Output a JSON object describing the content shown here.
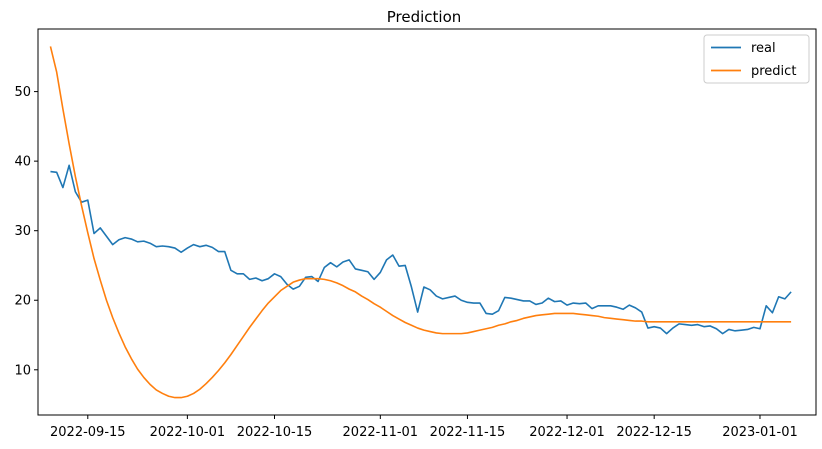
{
  "chart_data": {
    "type": "line",
    "title": "Prediction",
    "xlabel": "",
    "ylabel": "",
    "grid": false,
    "legend_position": "top-right",
    "x_ticks": [
      "2022-09-15",
      "2022-10-01",
      "2022-10-15",
      "2022-11-01",
      "2022-11-15",
      "2022-12-01",
      "2022-12-15",
      "2023-01-01"
    ],
    "y_ticks": [
      10,
      20,
      30,
      40,
      50
    ],
    "xlim": [
      "2022-09-07",
      "2023-01-10"
    ],
    "ylim": [
      3.5,
      59
    ],
    "series": [
      {
        "name": "real",
        "color": "#1f77b4",
        "points": [
          [
            "2022-09-09",
            38.5
          ],
          [
            "2022-09-10",
            38.4
          ],
          [
            "2022-09-11",
            36.2
          ],
          [
            "2022-09-12",
            39.4
          ],
          [
            "2022-09-13",
            35.6
          ],
          [
            "2022-09-14",
            34.1
          ],
          [
            "2022-09-15",
            34.4
          ],
          [
            "2022-09-16",
            29.6
          ],
          [
            "2022-09-17",
            30.4
          ],
          [
            "2022-09-18",
            29.2
          ],
          [
            "2022-09-19",
            28.0
          ],
          [
            "2022-09-20",
            28.7
          ],
          [
            "2022-09-21",
            29.0
          ],
          [
            "2022-09-22",
            28.8
          ],
          [
            "2022-09-23",
            28.4
          ],
          [
            "2022-09-24",
            28.5
          ],
          [
            "2022-09-25",
            28.2
          ],
          [
            "2022-09-26",
            27.7
          ],
          [
            "2022-09-27",
            27.8
          ],
          [
            "2022-09-28",
            27.7
          ],
          [
            "2022-09-29",
            27.5
          ],
          [
            "2022-09-30",
            26.9
          ],
          [
            "2022-10-01",
            27.5
          ],
          [
            "2022-10-02",
            28.0
          ],
          [
            "2022-10-03",
            27.7
          ],
          [
            "2022-10-04",
            27.9
          ],
          [
            "2022-10-05",
            27.6
          ],
          [
            "2022-10-06",
            27.0
          ],
          [
            "2022-10-07",
            27.0
          ],
          [
            "2022-10-08",
            24.3
          ],
          [
            "2022-10-09",
            23.8
          ],
          [
            "2022-10-10",
            23.8
          ],
          [
            "2022-10-11",
            23.0
          ],
          [
            "2022-10-12",
            23.2
          ],
          [
            "2022-10-13",
            22.8
          ],
          [
            "2022-10-14",
            23.1
          ],
          [
            "2022-10-15",
            23.8
          ],
          [
            "2022-10-16",
            23.4
          ],
          [
            "2022-10-17",
            22.3
          ],
          [
            "2022-10-18",
            21.6
          ],
          [
            "2022-10-19",
            22.0
          ],
          [
            "2022-10-20",
            23.3
          ],
          [
            "2022-10-21",
            23.4
          ],
          [
            "2022-10-22",
            22.7
          ],
          [
            "2022-10-23",
            24.7
          ],
          [
            "2022-10-24",
            25.4
          ],
          [
            "2022-10-25",
            24.8
          ],
          [
            "2022-10-26",
            25.5
          ],
          [
            "2022-10-27",
            25.8
          ],
          [
            "2022-10-28",
            24.5
          ],
          [
            "2022-10-29",
            24.3
          ],
          [
            "2022-10-30",
            24.1
          ],
          [
            "2022-10-31",
            23.0
          ],
          [
            "2022-11-01",
            24.0
          ],
          [
            "2022-11-02",
            25.8
          ],
          [
            "2022-11-03",
            26.5
          ],
          [
            "2022-11-04",
            24.9
          ],
          [
            "2022-11-05",
            25.0
          ],
          [
            "2022-11-06",
            21.9
          ],
          [
            "2022-11-07",
            18.3
          ],
          [
            "2022-11-08",
            21.9
          ],
          [
            "2022-11-09",
            21.5
          ],
          [
            "2022-11-10",
            20.6
          ],
          [
            "2022-11-11",
            20.2
          ],
          [
            "2022-11-12",
            20.4
          ],
          [
            "2022-11-13",
            20.6
          ],
          [
            "2022-11-14",
            20.0
          ],
          [
            "2022-11-15",
            19.7
          ],
          [
            "2022-11-16",
            19.6
          ],
          [
            "2022-11-17",
            19.6
          ],
          [
            "2022-11-18",
            18.1
          ],
          [
            "2022-11-19",
            18.0
          ],
          [
            "2022-11-20",
            18.5
          ],
          [
            "2022-11-21",
            20.4
          ],
          [
            "2022-11-22",
            20.3
          ],
          [
            "2022-11-23",
            20.1
          ],
          [
            "2022-11-24",
            19.9
          ],
          [
            "2022-11-25",
            19.9
          ],
          [
            "2022-11-26",
            19.4
          ],
          [
            "2022-11-27",
            19.6
          ],
          [
            "2022-11-28",
            20.3
          ],
          [
            "2022-11-29",
            19.8
          ],
          [
            "2022-11-30",
            19.9
          ],
          [
            "2022-12-01",
            19.3
          ],
          [
            "2022-12-02",
            19.6
          ],
          [
            "2022-12-03",
            19.5
          ],
          [
            "2022-12-04",
            19.6
          ],
          [
            "2022-12-05",
            18.8
          ],
          [
            "2022-12-06",
            19.2
          ],
          [
            "2022-12-07",
            19.2
          ],
          [
            "2022-12-08",
            19.2
          ],
          [
            "2022-12-09",
            19.0
          ],
          [
            "2022-12-10",
            18.7
          ],
          [
            "2022-12-11",
            19.3
          ],
          [
            "2022-12-12",
            18.9
          ],
          [
            "2022-12-13",
            18.3
          ],
          [
            "2022-12-14",
            16.0
          ],
          [
            "2022-12-15",
            16.2
          ],
          [
            "2022-12-16",
            16.0
          ],
          [
            "2022-12-17",
            15.2
          ],
          [
            "2022-12-18",
            16.0
          ],
          [
            "2022-12-19",
            16.6
          ],
          [
            "2022-12-20",
            16.5
          ],
          [
            "2022-12-21",
            16.4
          ],
          [
            "2022-12-22",
            16.5
          ],
          [
            "2022-12-23",
            16.2
          ],
          [
            "2022-12-24",
            16.3
          ],
          [
            "2022-12-25",
            15.9
          ],
          [
            "2022-12-26",
            15.2
          ],
          [
            "2022-12-27",
            15.8
          ],
          [
            "2022-12-28",
            15.6
          ],
          [
            "2022-12-29",
            15.7
          ],
          [
            "2022-12-30",
            15.8
          ],
          [
            "2022-12-31",
            16.1
          ],
          [
            "2023-01-01",
            15.9
          ],
          [
            "2023-01-02",
            19.2
          ],
          [
            "2023-01-03",
            18.2
          ],
          [
            "2023-01-04",
            20.5
          ],
          [
            "2023-01-05",
            20.2
          ],
          [
            "2023-01-06",
            21.2
          ]
        ]
      },
      {
        "name": "predict",
        "color": "#ff7f0e",
        "points": [
          [
            "2022-09-09",
            56.5
          ],
          [
            "2022-09-10",
            52.8
          ],
          [
            "2022-09-11",
            47.5
          ],
          [
            "2022-09-12",
            42.5
          ],
          [
            "2022-09-13",
            37.8
          ],
          [
            "2022-09-14",
            33.6
          ],
          [
            "2022-09-15",
            29.7
          ],
          [
            "2022-09-16",
            26.0
          ],
          [
            "2022-09-17",
            22.9
          ],
          [
            "2022-09-18",
            20.0
          ],
          [
            "2022-09-19",
            17.5
          ],
          [
            "2022-09-20",
            15.3
          ],
          [
            "2022-09-21",
            13.3
          ],
          [
            "2022-09-22",
            11.6
          ],
          [
            "2022-09-23",
            10.1
          ],
          [
            "2022-09-24",
            8.9
          ],
          [
            "2022-09-25",
            7.9
          ],
          [
            "2022-09-26",
            7.1
          ],
          [
            "2022-09-27",
            6.6
          ],
          [
            "2022-09-28",
            6.2
          ],
          [
            "2022-09-29",
            6.0
          ],
          [
            "2022-09-30",
            6.0
          ],
          [
            "2022-10-01",
            6.2
          ],
          [
            "2022-10-02",
            6.6
          ],
          [
            "2022-10-03",
            7.2
          ],
          [
            "2022-10-04",
            8.0
          ],
          [
            "2022-10-05",
            8.9
          ],
          [
            "2022-10-06",
            9.9
          ],
          [
            "2022-10-07",
            11.0
          ],
          [
            "2022-10-08",
            12.2
          ],
          [
            "2022-10-09",
            13.5
          ],
          [
            "2022-10-10",
            14.8
          ],
          [
            "2022-10-11",
            16.1
          ],
          [
            "2022-10-12",
            17.3
          ],
          [
            "2022-10-13",
            18.5
          ],
          [
            "2022-10-14",
            19.6
          ],
          [
            "2022-10-15",
            20.5
          ],
          [
            "2022-10-16",
            21.4
          ],
          [
            "2022-10-17",
            22.0
          ],
          [
            "2022-10-18",
            22.6
          ],
          [
            "2022-10-19",
            22.9
          ],
          [
            "2022-10-20",
            23.1
          ],
          [
            "2022-10-21",
            23.1
          ],
          [
            "2022-10-22",
            23.1
          ],
          [
            "2022-10-23",
            23.0
          ],
          [
            "2022-10-24",
            22.8
          ],
          [
            "2022-10-25",
            22.5
          ],
          [
            "2022-10-26",
            22.1
          ],
          [
            "2022-10-27",
            21.6
          ],
          [
            "2022-10-28",
            21.2
          ],
          [
            "2022-10-29",
            20.6
          ],
          [
            "2022-10-30",
            20.1
          ],
          [
            "2022-10-31",
            19.5
          ],
          [
            "2022-11-01",
            19.0
          ],
          [
            "2022-11-02",
            18.4
          ],
          [
            "2022-11-03",
            17.8
          ],
          [
            "2022-11-04",
            17.3
          ],
          [
            "2022-11-05",
            16.8
          ],
          [
            "2022-11-06",
            16.4
          ],
          [
            "2022-11-07",
            16.0
          ],
          [
            "2022-11-08",
            15.7
          ],
          [
            "2022-11-09",
            15.5
          ],
          [
            "2022-11-10",
            15.3
          ],
          [
            "2022-11-11",
            15.2
          ],
          [
            "2022-11-12",
            15.2
          ],
          [
            "2022-11-13",
            15.2
          ],
          [
            "2022-11-14",
            15.2
          ],
          [
            "2022-11-15",
            15.3
          ],
          [
            "2022-11-16",
            15.5
          ],
          [
            "2022-11-17",
            15.7
          ],
          [
            "2022-11-18",
            15.9
          ],
          [
            "2022-11-19",
            16.1
          ],
          [
            "2022-11-20",
            16.4
          ],
          [
            "2022-11-21",
            16.6
          ],
          [
            "2022-11-22",
            16.9
          ],
          [
            "2022-11-23",
            17.1
          ],
          [
            "2022-11-24",
            17.4
          ],
          [
            "2022-11-25",
            17.6
          ],
          [
            "2022-11-26",
            17.8
          ],
          [
            "2022-11-27",
            17.9
          ],
          [
            "2022-11-28",
            18.0
          ],
          [
            "2022-11-29",
            18.1
          ],
          [
            "2022-11-30",
            18.1
          ],
          [
            "2022-12-01",
            18.1
          ],
          [
            "2022-12-02",
            18.1
          ],
          [
            "2022-12-03",
            18.0
          ],
          [
            "2022-12-04",
            17.9
          ],
          [
            "2022-12-05",
            17.8
          ],
          [
            "2022-12-06",
            17.7
          ],
          [
            "2022-12-07",
            17.5
          ],
          [
            "2022-12-08",
            17.4
          ],
          [
            "2022-12-09",
            17.3
          ],
          [
            "2022-12-10",
            17.2
          ],
          [
            "2022-12-11",
            17.1
          ],
          [
            "2022-12-12",
            17.0
          ],
          [
            "2022-12-13",
            17.0
          ],
          [
            "2022-12-14",
            16.9
          ],
          [
            "2022-12-15",
            16.9
          ],
          [
            "2022-12-16",
            16.9
          ],
          [
            "2022-12-17",
            16.9
          ],
          [
            "2022-12-18",
            16.9
          ],
          [
            "2022-12-19",
            16.9
          ],
          [
            "2022-12-20",
            16.9
          ],
          [
            "2022-12-21",
            16.9
          ],
          [
            "2022-12-22",
            16.9
          ],
          [
            "2022-12-23",
            16.9
          ],
          [
            "2022-12-24",
            16.9
          ],
          [
            "2022-12-25",
            16.9
          ],
          [
            "2022-12-26",
            16.9
          ],
          [
            "2022-12-27",
            16.9
          ],
          [
            "2022-12-28",
            16.9
          ],
          [
            "2022-12-29",
            16.9
          ],
          [
            "2022-12-30",
            16.9
          ],
          [
            "2022-12-31",
            16.9
          ],
          [
            "2023-01-01",
            16.9
          ],
          [
            "2023-01-02",
            16.9
          ],
          [
            "2023-01-03",
            16.9
          ],
          [
            "2023-01-04",
            16.9
          ],
          [
            "2023-01-05",
            16.9
          ],
          [
            "2023-01-06",
            16.9
          ]
        ]
      }
    ]
  }
}
